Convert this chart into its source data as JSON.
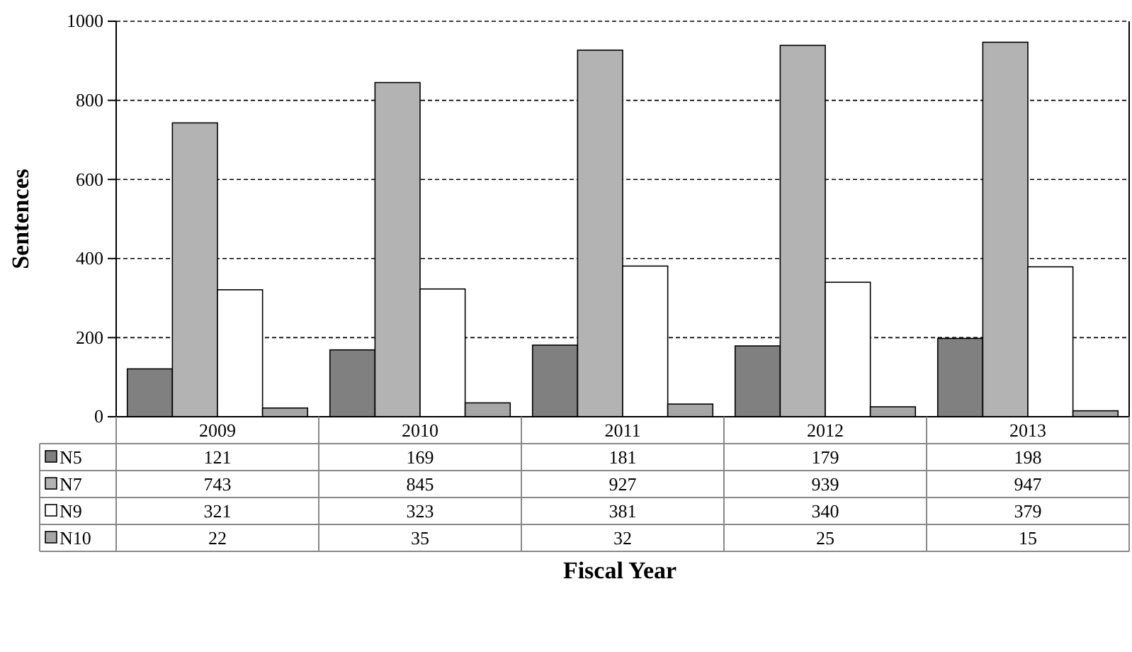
{
  "chart_data": {
    "type": "bar",
    "xlabel": "Fiscal Year",
    "ylabel": "Sentences",
    "categories": [
      "2009",
      "2010",
      "2011",
      "2012",
      "2013"
    ],
    "series": [
      {
        "name": "N5",
        "color": "#808080",
        "values": [
          121,
          169,
          181,
          179,
          198
        ]
      },
      {
        "name": "N7",
        "color": "#b3b3b3",
        "values": [
          743,
          845,
          927,
          939,
          947
        ]
      },
      {
        "name": "N9",
        "color": "#ffffff",
        "values": [
          321,
          323,
          381,
          340,
          379
        ]
      },
      {
        "name": "N10",
        "color": "#a6a6a6",
        "values": [
          22,
          35,
          32,
          25,
          15
        ]
      }
    ],
    "ylim": [
      0,
      1000
    ],
    "yticks": [
      0,
      200,
      400,
      600,
      800,
      1000
    ],
    "grid": "y",
    "legend": "bottom left",
    "data_labels": true
  }
}
